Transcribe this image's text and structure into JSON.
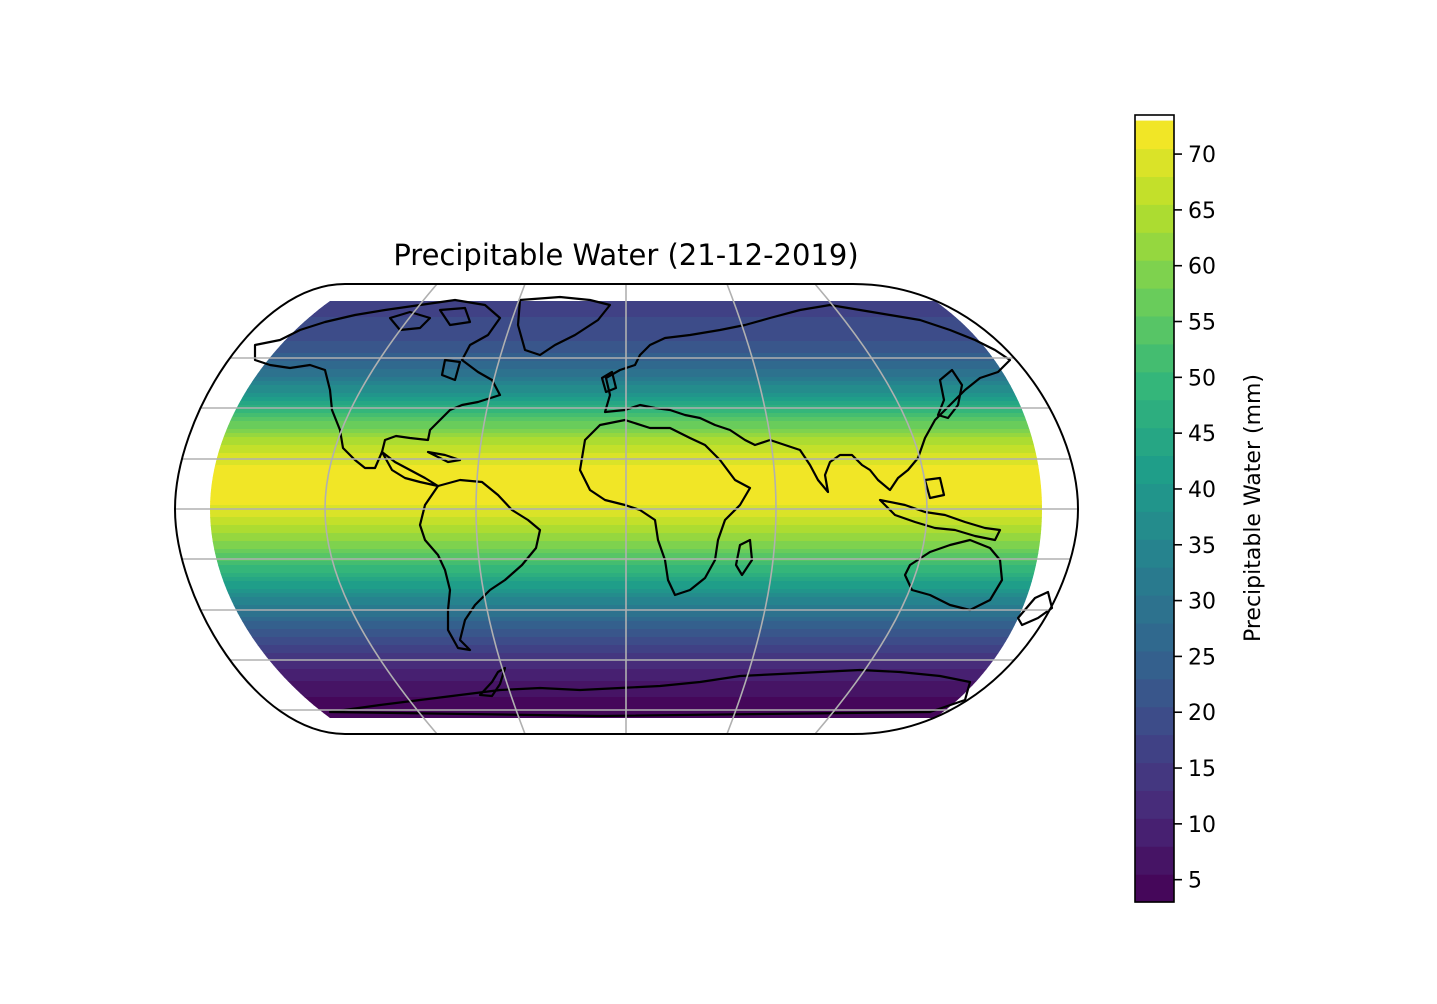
{
  "map": {
    "title": "Precipitable Water (21-12-2019)",
    "projection": "eckert",
    "variable": "precipitable water",
    "gridlines": true,
    "coastlines": true
  },
  "colorbar": {
    "label": "Precipitable Water (mm)",
    "colormap": "viridis",
    "orientation": "vertical",
    "placement": "right",
    "range": [
      3,
      73.5
    ],
    "level_step": 2.5,
    "ticks": [
      "5",
      "10",
      "15",
      "20",
      "25",
      "30",
      "35",
      "40",
      "45",
      "50",
      "55",
      "60",
      "65",
      "70"
    ]
  },
  "colors": {
    "viridis": [
      "#440154",
      "#482878",
      "#3e4989",
      "#31688e",
      "#26828e",
      "#1f9e89",
      "#35b779",
      "#6ece58",
      "#b5de2b",
      "#fde725"
    ],
    "coastline": "#000000",
    "gridline": "#b0b0b0"
  }
}
